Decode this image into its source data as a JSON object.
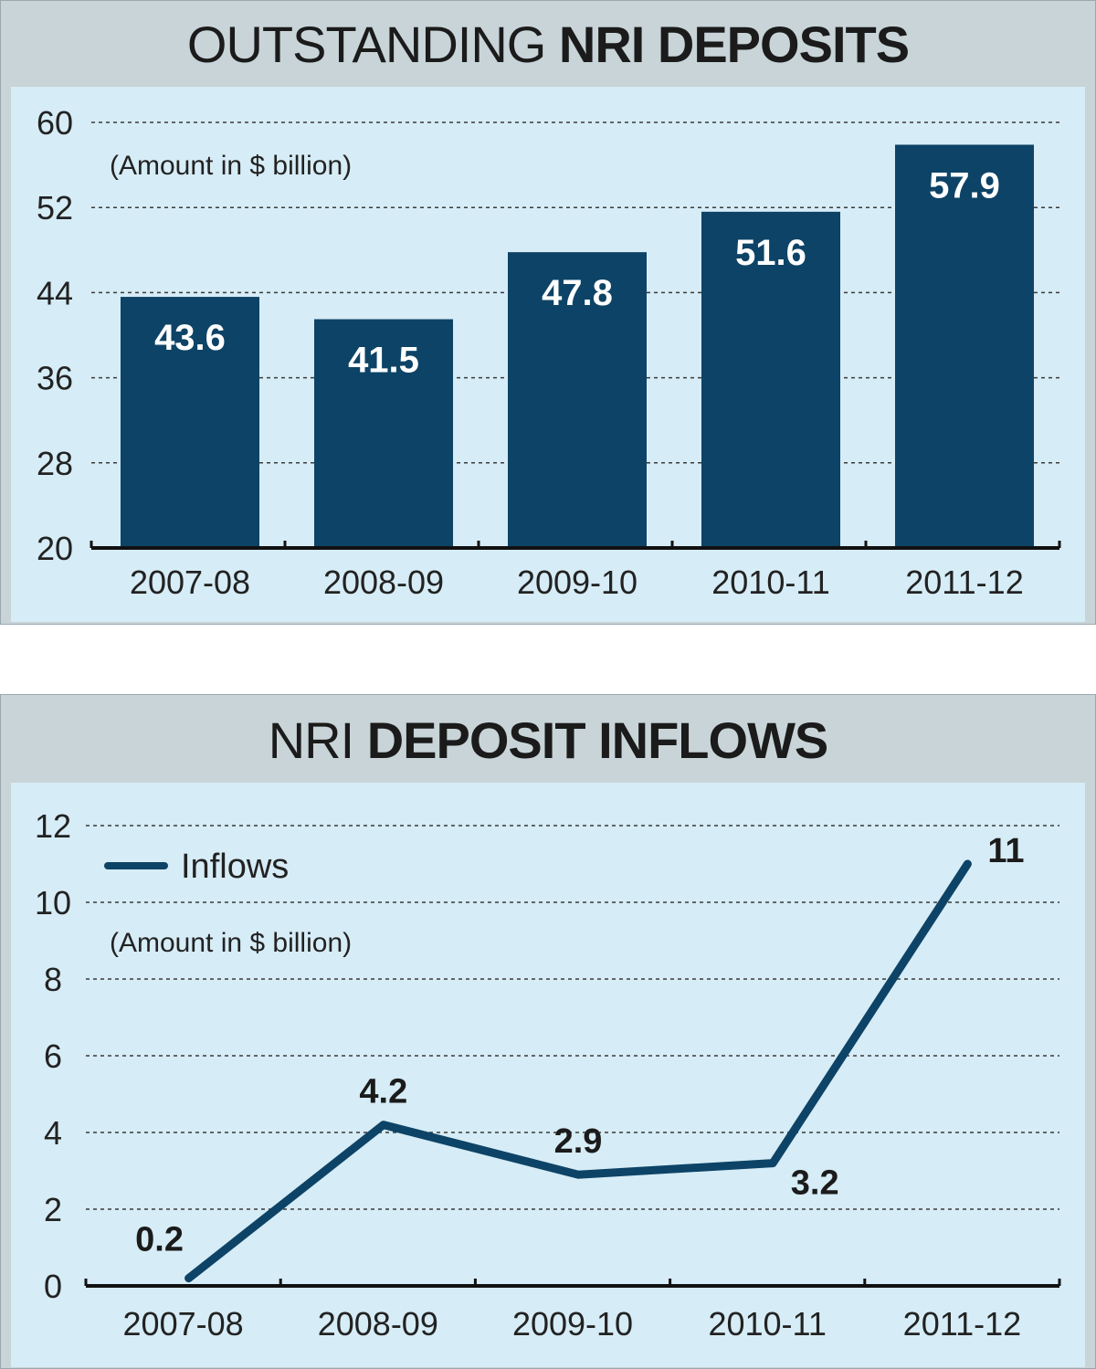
{
  "chart_data": [
    {
      "type": "bar",
      "title_light": "OUTSTANDING",
      "title_bold": "NRI DEPOSITS",
      "unit_note": "(Amount in $ billion)",
      "categories": [
        "2007-08",
        "2008-09",
        "2009-10",
        "2010-11",
        "2011-12"
      ],
      "values": [
        43.6,
        41.5,
        47.8,
        51.6,
        57.9
      ],
      "value_labels": [
        "43.6",
        "41.5",
        "47.8",
        "51.6",
        "57.9"
      ],
      "yticks": [
        20,
        28,
        36,
        44,
        52,
        60
      ],
      "ylim": [
        20,
        60
      ],
      "grid": true,
      "bar_color": "#0d4366"
    },
    {
      "type": "line",
      "title_light": "NRI",
      "title_bold": "DEPOSIT INFLOWS",
      "unit_note": "(Amount in $ billion)",
      "legend": "Inflows",
      "legend_position": "top-left",
      "categories": [
        "2007-08",
        "2008-09",
        "2009-10",
        "2010-11",
        "2011-12"
      ],
      "series": [
        {
          "name": "Inflows",
          "values": [
            0.2,
            4.2,
            2.9,
            3.2,
            11
          ]
        }
      ],
      "value_labels": [
        "0.2",
        "4.2",
        "2.9",
        "3.2",
        "11"
      ],
      "yticks": [
        0,
        2,
        4,
        6,
        8,
        10,
        12
      ],
      "ylim": [
        0,
        12
      ],
      "grid": true,
      "line_color": "#0d4366"
    }
  ]
}
